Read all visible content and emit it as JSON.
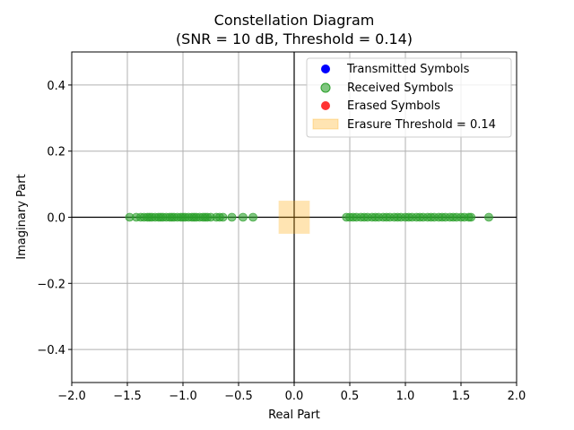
{
  "chart_data": {
    "type": "scatter",
    "title": "Constellation Diagram",
    "subtitle": "(SNR = 10 dB, Threshold = 0.14)",
    "xlabel": "Real Part",
    "ylabel": "Imaginary Part",
    "xlim": [
      -2.0,
      2.0
    ],
    "ylim": [
      -0.5,
      0.5
    ],
    "xticks": [
      -2.0,
      -1.5,
      -1.0,
      -0.5,
      0.0,
      0.5,
      1.0,
      1.5,
      2.0
    ],
    "yticks": [
      -0.4,
      -0.2,
      0.0,
      0.2,
      0.4
    ],
    "xtick_labels": [
      "−2.0",
      "−1.5",
      "−1.0",
      "−0.5",
      "0.0",
      "0.5",
      "1.0",
      "1.5",
      "2.0"
    ],
    "ytick_labels": [
      "−0.4",
      "−0.2",
      "0.0",
      "0.2",
      "0.4"
    ],
    "grid": true,
    "legend_position": "top-right",
    "threshold": 0.14,
    "threshold_box": {
      "x": [
        -0.14,
        0.14
      ],
      "y": [
        -0.05,
        0.05
      ]
    },
    "series": [
      {
        "name": "Transmitted Symbols",
        "color": "#0000ff",
        "x": [],
        "y": []
      },
      {
        "name": "Received Symbols",
        "color": "#2ca02c",
        "x": [
          -1.48,
          -1.42,
          -1.38,
          -1.35,
          -1.32,
          -1.3,
          -1.28,
          -1.25,
          -1.22,
          -1.2,
          -1.18,
          -1.15,
          -1.12,
          -1.1,
          -1.08,
          -1.05,
          -1.02,
          -1.0,
          -0.98,
          -0.95,
          -0.92,
          -0.9,
          -0.88,
          -0.85,
          -0.82,
          -0.8,
          -0.78,
          -0.75,
          -0.7,
          -0.67,
          -0.64,
          -0.56,
          -0.46,
          -0.37,
          0.47,
          0.5,
          0.53,
          0.56,
          0.6,
          0.63,
          0.66,
          0.7,
          0.73,
          0.76,
          0.8,
          0.83,
          0.86,
          0.9,
          0.93,
          0.96,
          1.0,
          1.03,
          1.06,
          1.1,
          1.13,
          1.16,
          1.2,
          1.23,
          1.26,
          1.3,
          1.33,
          1.36,
          1.4,
          1.43,
          1.46,
          1.5,
          1.53,
          1.57,
          1.59,
          1.75
        ],
        "y": [
          0,
          0,
          0,
          0,
          0,
          0,
          0,
          0,
          0,
          0,
          0,
          0,
          0,
          0,
          0,
          0,
          0,
          0,
          0,
          0,
          0,
          0,
          0,
          0,
          0,
          0,
          0,
          0,
          0,
          0,
          0,
          0,
          0,
          0,
          0,
          0,
          0,
          0,
          0,
          0,
          0,
          0,
          0,
          0,
          0,
          0,
          0,
          0,
          0,
          0,
          0,
          0,
          0,
          0,
          0,
          0,
          0,
          0,
          0,
          0,
          0,
          0,
          0,
          0,
          0,
          0,
          0,
          0,
          0,
          0
        ]
      },
      {
        "name": "Erased Symbols",
        "color": "#ff0000",
        "x": [],
        "y": []
      }
    ],
    "threshold_label": "Erasure Threshold = 0.14",
    "threshold_color": "#ffa500"
  }
}
